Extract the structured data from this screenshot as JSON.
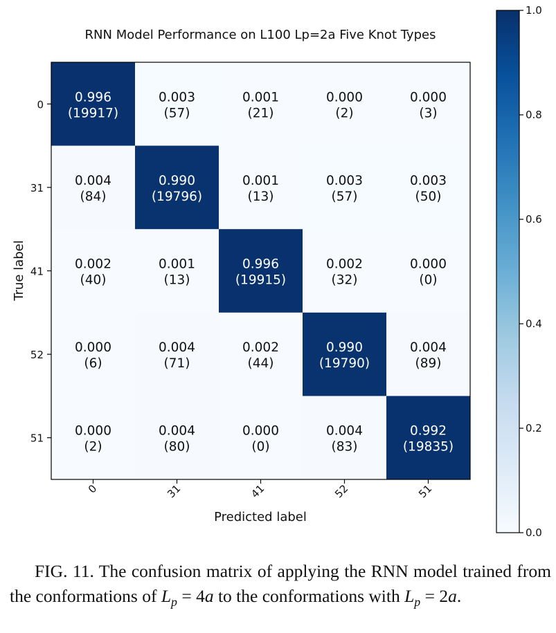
{
  "chart_data": {
    "type": "heatmap",
    "title": "RNN Model Performance on L100 Lp=2a Five Knot Types",
    "xlabel": "Predicted label",
    "ylabel": "True label",
    "row_labels": [
      "0",
      "31",
      "41",
      "52",
      "51"
    ],
    "col_labels": [
      "0",
      "31",
      "41",
      "52",
      "51"
    ],
    "values": [
      [
        0.996,
        0.003,
        0.001,
        0.0,
        0.0
      ],
      [
        0.004,
        0.99,
        0.001,
        0.003,
        0.003
      ],
      [
        0.002,
        0.001,
        0.996,
        0.002,
        0.0
      ],
      [
        0.0,
        0.004,
        0.002,
        0.99,
        0.004
      ],
      [
        0.0,
        0.004,
        0.0,
        0.004,
        0.992
      ]
    ],
    "value_labels": [
      [
        "0.996",
        "0.003",
        "0.001",
        "0.000",
        "0.000"
      ],
      [
        "0.004",
        "0.990",
        "0.001",
        "0.003",
        "0.003"
      ],
      [
        "0.002",
        "0.001",
        "0.996",
        "0.002",
        "0.000"
      ],
      [
        "0.000",
        "0.004",
        "0.002",
        "0.990",
        "0.004"
      ],
      [
        "0.000",
        "0.004",
        "0.000",
        "0.004",
        "0.992"
      ]
    ],
    "counts": [
      [
        "(19917)",
        "(57)",
        "(21)",
        "(2)",
        "(3)"
      ],
      [
        "(84)",
        "(19796)",
        "(13)",
        "(57)",
        "(50)"
      ],
      [
        "(40)",
        "(13)",
        "(19915)",
        "(32)",
        "(0)"
      ],
      [
        "(6)",
        "(71)",
        "(44)",
        "(19790)",
        "(89)"
      ],
      [
        "(2)",
        "(80)",
        "(0)",
        "(83)",
        "(19835)"
      ]
    ],
    "colorbar": {
      "range": [
        0.0,
        1.0
      ],
      "tick_values": [
        0.0,
        0.2,
        0.4,
        0.6,
        0.8,
        1.0
      ],
      "tick_labels": [
        "0.0",
        "0.2",
        "0.4",
        "0.6",
        "0.8",
        "1.0"
      ],
      "colormap": "Blues",
      "color_low": "#f7fbff",
      "color_high": "#08306b"
    },
    "grid": false,
    "x_tick_rotation": "45 degrees"
  },
  "caption": {
    "label": "FIG. 11.",
    "text_1": " The confusion matrix of applying the RNN model trained from the conformations of ",
    "math_1_var": "L",
    "math_1_sub": "p",
    "math_1_rest": " = 4",
    "math_1_unit": "a",
    "text_2": " to the conformations with ",
    "math_2_var": "L",
    "math_2_sub": "p",
    "math_2_rest": " = 2",
    "math_2_unit": "a",
    "text_3": "."
  }
}
